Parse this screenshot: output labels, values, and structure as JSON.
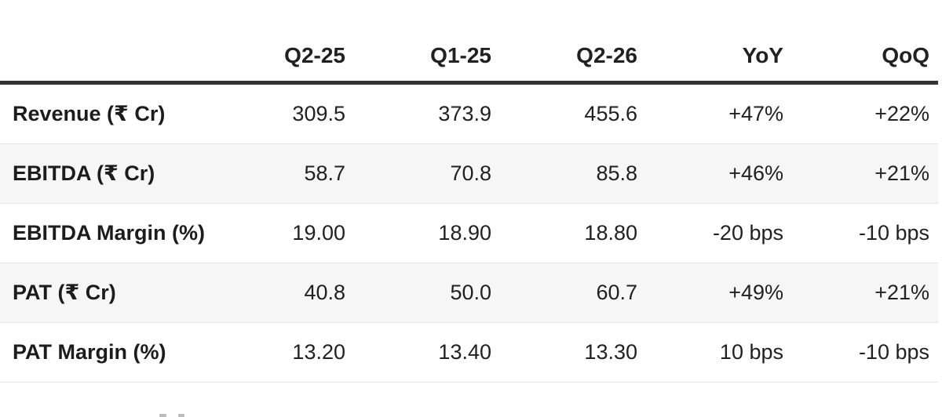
{
  "colors": {
    "page_bg": "#ffffff",
    "text": "#212121",
    "header_rule": "#333333",
    "row_divider": "#e3e3e3",
    "zebra_row_bg": "#f6f6f6"
  },
  "chart_data": {
    "type": "table",
    "columns": [
      "",
      "Q2-25",
      "Q1-25",
      "Q2-26",
      "YoY",
      "QoQ"
    ],
    "rows": [
      {
        "label": "Revenue (₹ Cr)",
        "values": [
          "309.5",
          "373.9",
          "455.6",
          "+47%",
          "+22%"
        ]
      },
      {
        "label": "EBITDA (₹ Cr)",
        "values": [
          "58.7",
          "70.8",
          "85.8",
          "+46%",
          "+21%"
        ]
      },
      {
        "label": "EBITDA Margin (%)",
        "values": [
          "19.00",
          "18.90",
          "18.80",
          "-20 bps",
          "-10 bps"
        ]
      },
      {
        "label": "PAT (₹ Cr)",
        "values": [
          "40.8",
          "50.0",
          "60.7",
          "+49%",
          "+21%"
        ]
      },
      {
        "label": "PAT Margin (%)",
        "values": [
          "13.20",
          "13.40",
          "13.30",
          "10 bps",
          "-10 bps"
        ]
      }
    ]
  }
}
